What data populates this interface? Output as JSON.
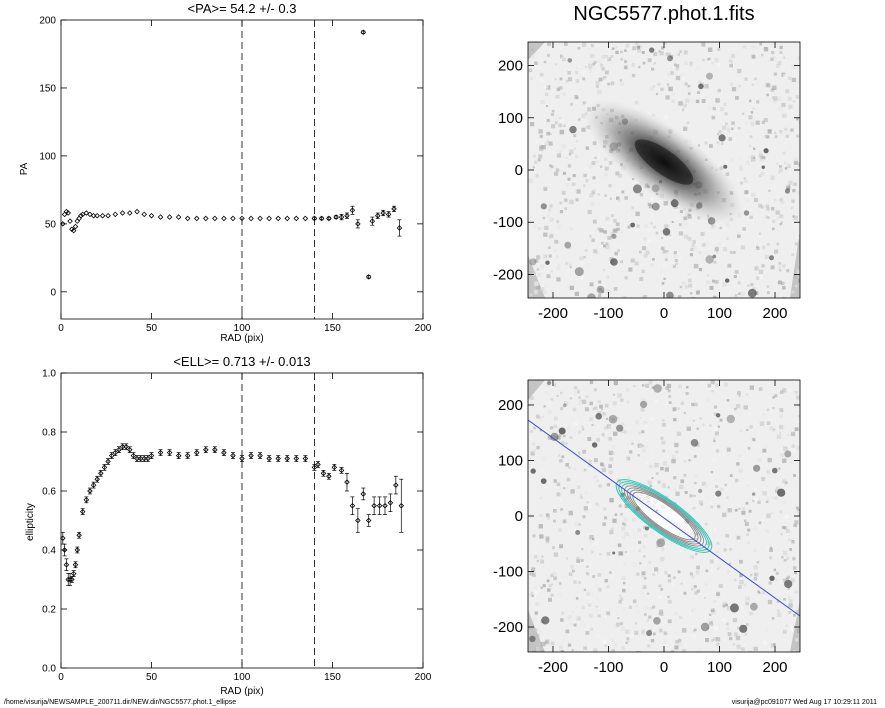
{
  "chart_data": [
    {
      "type": "scatter",
      "title": "<PA>=  54.2 +/-   0.3",
      "xlabel": "RAD (pix)",
      "ylabel": "PA",
      "xlim": [
        0,
        200
      ],
      "ylim": [
        -20,
        200
      ],
      "xticks": [
        "0",
        "50",
        "100",
        "150",
        "200"
      ],
      "yticks": [
        "0",
        "50",
        "100",
        "150",
        "200"
      ],
      "vlines": [
        100,
        140
      ],
      "grid": false,
      "series": [
        {
          "x": [
            1,
            2,
            3,
            4,
            5,
            6,
            7,
            8,
            9,
            10,
            11,
            12,
            14,
            16,
            18,
            20,
            23,
            26,
            30,
            34,
            38,
            42,
            46,
            50,
            55,
            60,
            65,
            70,
            75,
            80,
            85,
            90,
            95,
            100,
            105,
            110,
            115,
            120,
            125,
            130,
            135,
            140,
            144,
            148,
            152,
            155,
            158,
            161,
            164,
            167,
            170,
            172,
            175,
            178,
            181,
            184,
            187
          ],
          "y": [
            50,
            57,
            59,
            58,
            52,
            46,
            45,
            48,
            52,
            54,
            56,
            57,
            58,
            57,
            56,
            56,
            56,
            56,
            57,
            58,
            58,
            59,
            57,
            56,
            55,
            55,
            55,
            54,
            54,
            54,
            54,
            54,
            54,
            54,
            54,
            54,
            54,
            54,
            54,
            54,
            54,
            54,
            54,
            54,
            55,
            55,
            56,
            60,
            50,
            191,
            11,
            52,
            56,
            58,
            57,
            61,
            47
          ],
          "yerr": [
            0,
            0,
            0,
            0,
            0,
            0,
            0,
            0,
            0,
            0,
            0,
            0,
            0,
            0,
            0,
            0,
            0,
            0,
            0,
            0,
            0,
            0,
            0,
            0,
            0,
            0,
            0,
            0,
            0,
            0,
            0,
            0,
            0,
            0,
            0,
            0,
            0,
            0,
            0,
            0,
            0,
            1,
            1,
            1,
            1,
            2,
            2,
            3,
            3,
            1,
            1,
            3,
            2,
            2,
            2,
            2,
            6
          ]
        }
      ]
    },
    {
      "type": "scatter",
      "title": "<ELL>= 0.713 +/-  0.013",
      "xlabel": "RAD (pix)",
      "ylabel": "ellipticity",
      "xlim": [
        0,
        200
      ],
      "ylim": [
        0.0,
        1.0
      ],
      "xticks": [
        "0",
        "50",
        "100",
        "150",
        "200"
      ],
      "yticks": [
        "0.0",
        "0.2",
        "0.4",
        "0.6",
        "0.8",
        "1.0"
      ],
      "vlines": [
        100,
        140
      ],
      "grid": false,
      "series": [
        {
          "x": [
            1,
            2,
            3,
            4,
            5,
            6,
            7,
            8,
            9,
            10,
            12,
            14,
            16,
            18,
            20,
            22,
            24,
            26,
            28,
            30,
            32,
            34,
            36,
            38,
            40,
            42,
            44,
            46,
            48,
            50,
            55,
            60,
            65,
            70,
            75,
            80,
            85,
            90,
            95,
            100,
            105,
            110,
            115,
            120,
            125,
            130,
            135,
            140,
            142,
            145,
            148,
            151,
            155,
            158,
            161,
            164,
            167,
            170,
            173,
            176,
            179,
            182,
            185,
            188
          ],
          "y": [
            0.44,
            0.4,
            0.35,
            0.3,
            0.3,
            0.3,
            0.32,
            0.35,
            0.4,
            0.45,
            0.53,
            0.57,
            0.6,
            0.62,
            0.64,
            0.66,
            0.68,
            0.7,
            0.72,
            0.73,
            0.74,
            0.75,
            0.75,
            0.74,
            0.72,
            0.71,
            0.71,
            0.71,
            0.71,
            0.72,
            0.73,
            0.73,
            0.72,
            0.72,
            0.73,
            0.74,
            0.74,
            0.73,
            0.72,
            0.71,
            0.72,
            0.72,
            0.71,
            0.71,
            0.71,
            0.71,
            0.71,
            0.68,
            0.69,
            0.66,
            0.65,
            0.68,
            0.67,
            0.63,
            0.55,
            0.5,
            0.59,
            0.5,
            0.55,
            0.55,
            0.55,
            0.56,
            0.62,
            0.55
          ],
          "yerr": [
            0.02,
            0.02,
            0.02,
            0.02,
            0.02,
            0.01,
            0.01,
            0.01,
            0.01,
            0.01,
            0.01,
            0.01,
            0.01,
            0.01,
            0.01,
            0.01,
            0.01,
            0.01,
            0.01,
            0.01,
            0.01,
            0.01,
            0.01,
            0.01,
            0.01,
            0.01,
            0.01,
            0.01,
            0.01,
            0.01,
            0.01,
            0.01,
            0.01,
            0.01,
            0.01,
            0.01,
            0.01,
            0.01,
            0.01,
            0.01,
            0.01,
            0.01,
            0.01,
            0.01,
            0.01,
            0.01,
            0.01,
            0.01,
            0.01,
            0.01,
            0.01,
            0.01,
            0.01,
            0.03,
            0.03,
            0.04,
            0.02,
            0.02,
            0.03,
            0.03,
            0.03,
            0.03,
            0.03,
            0.09
          ]
        }
      ]
    },
    {
      "type": "heatmap",
      "title": "NGC5577.phot.1.fits",
      "xlim": [
        -245,
        245
      ],
      "ylim": [
        -245,
        245
      ],
      "xticks": [
        "-200",
        "-100",
        "0",
        "100",
        "200"
      ],
      "yticks": [
        "-200",
        "-100",
        "0",
        "100",
        "200"
      ],
      "galaxy": {
        "pa_deg": 54.2,
        "ellipticity": 0.713,
        "semi_major": 110
      }
    },
    {
      "type": "heatmap",
      "title": "",
      "xlim": [
        -245,
        245
      ],
      "ylim": [
        -245,
        245
      ],
      "xticks": [
        "-200",
        "-100",
        "0",
        "100",
        "200"
      ],
      "yticks": [
        "-200",
        "-100",
        "0",
        "100",
        "200"
      ],
      "contour_colors": {
        "inner": "#ffffff",
        "middle": "#8a8a8a",
        "outer": "#2ac4b4"
      },
      "major_axis_line_color": "#3a4fc8",
      "ellipse_semi_major": [
        8,
        14,
        20,
        26,
        32,
        38,
        44,
        50,
        56,
        62,
        68,
        74,
        80,
        86,
        92,
        98,
        104
      ]
    }
  ],
  "footer": {
    "left": "/home/visurija/NEWSAMPLE_200711.dir/NEW.dir/NGC5577.phot.1_ellipse",
    "right": "visurija@pc091077  Wed Aug 17 10:29:11 2011"
  }
}
